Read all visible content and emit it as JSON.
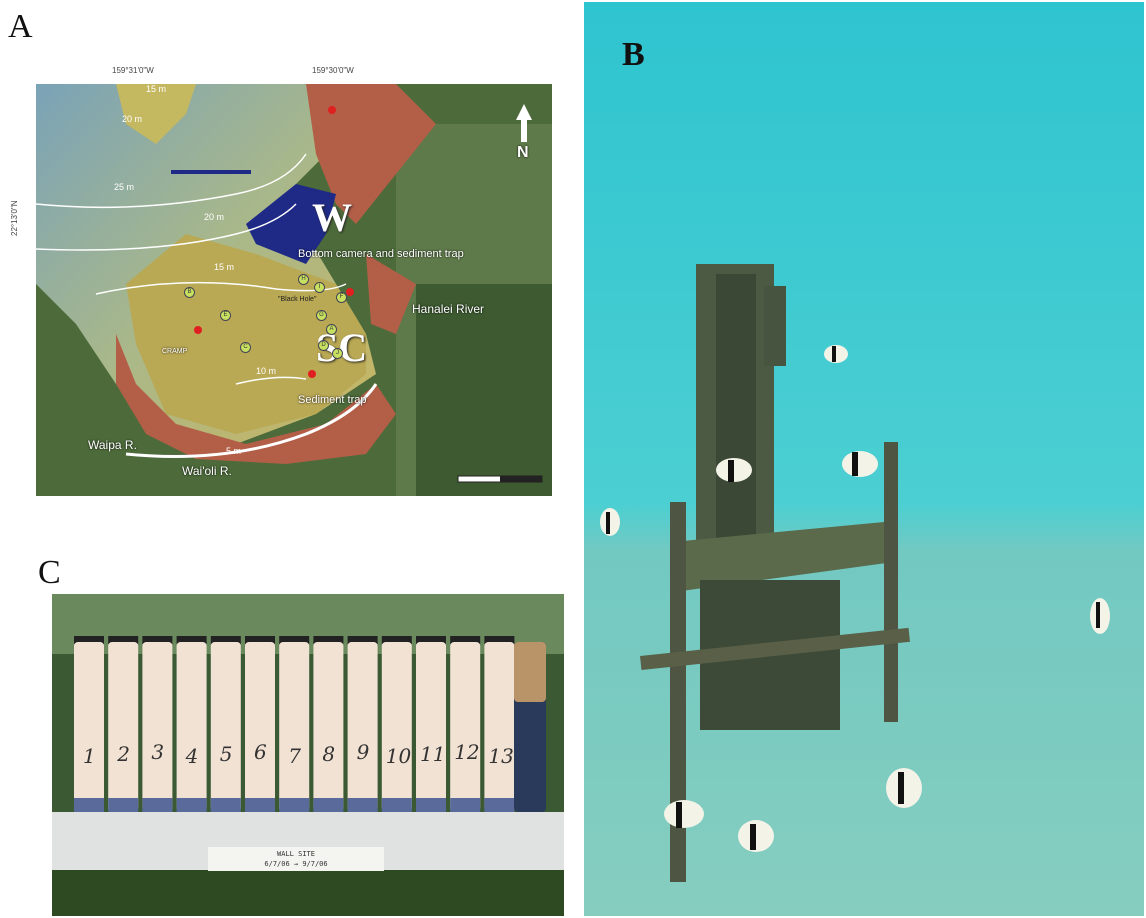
{
  "panels": {
    "a": "A",
    "b": "B",
    "c": "C"
  },
  "map": {
    "lon_ticks": [
      "159°31'0\"W",
      "159°30'0\"W"
    ],
    "lat_tick": "22°13'0\"N",
    "north": "N",
    "site_w": "W",
    "site_sc": "SC",
    "bottom_camera": "Bottom camera and sediment trap",
    "sediment_trap": "Sediment trap",
    "black_hole": "\"Black Hole\"",
    "cramp": "CRAMP",
    "rivers": [
      "Hanalei River",
      "Waipa R.",
      "Wai'oli R."
    ],
    "contours": [
      "15 m",
      "20 m",
      "25 m",
      "20 m",
      "15 m",
      "10 m",
      "5 m"
    ],
    "site_letters": [
      "B",
      "E",
      "C",
      "H",
      "I",
      "F",
      "G",
      "A",
      "D",
      "J"
    ]
  },
  "tubes": {
    "numbers": [
      "1",
      "2",
      "3",
      "4",
      "5",
      "6",
      "7",
      "8",
      "9",
      "10",
      "11",
      "12",
      "13"
    ],
    "label_line1": "WALL SITE",
    "label_line2": "6/7/06 → 9/7/06"
  },
  "colors": {
    "water": "#3cc6cc",
    "sand": "#7dc8bf",
    "map_red": "#b35e47",
    "map_yellow": "#b9a854",
    "map_blue": "#1e2a86"
  }
}
